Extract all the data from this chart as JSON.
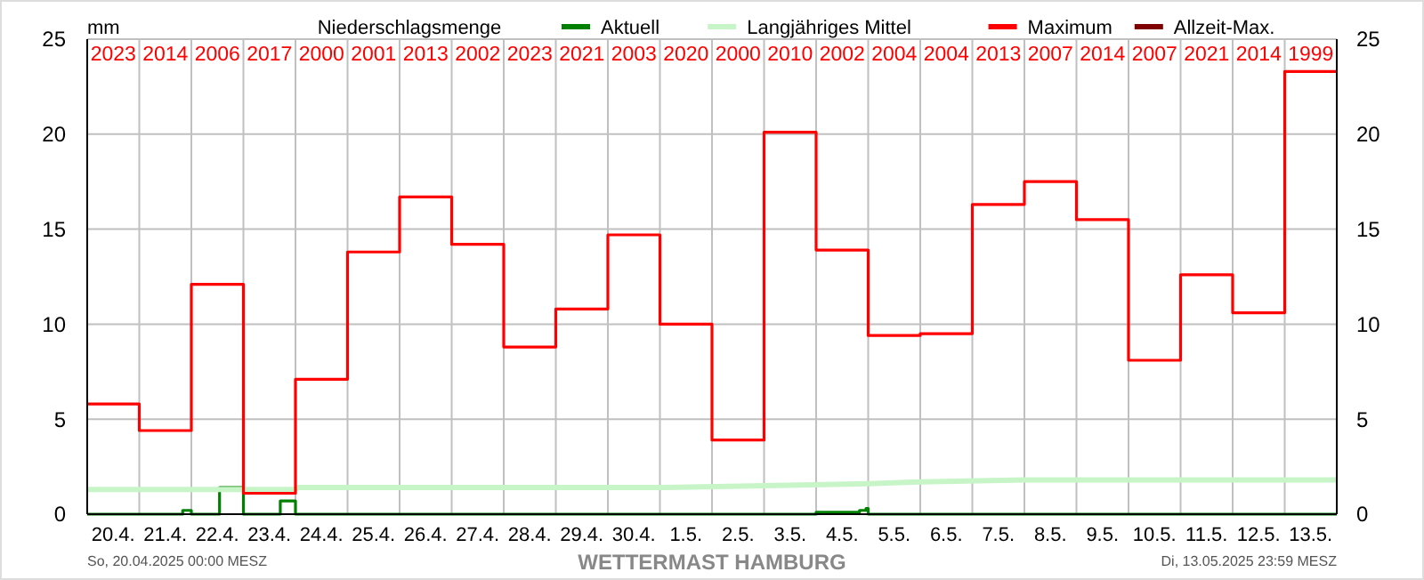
{
  "chart_data": {
    "type": "step",
    "title": "Niederschlagsmenge",
    "ylabel": "mm",
    "xlim": [
      "2025-04-20T00:00",
      "2025-05-14T00:00"
    ],
    "xticks": [
      {
        "value": "2025-04-20T00:00",
        "label": null
      },
      {
        "value": "2025-04-20T12:00",
        "label": "20.4."
      },
      {
        "value": "2025-04-21T00:00",
        "label": null
      },
      {
        "value": "2025-04-21T12:00",
        "label": "21.4."
      },
      {
        "value": "2025-04-22T00:00",
        "label": null
      },
      {
        "value": "2025-04-22T12:00",
        "label": "22.4."
      },
      {
        "value": "2025-04-23T00:00",
        "label": null
      },
      {
        "value": "2025-04-23T12:00",
        "label": "23.4."
      },
      {
        "value": "2025-04-24T00:00",
        "label": null
      },
      {
        "value": "2025-04-24T12:00",
        "label": "24.4."
      },
      {
        "value": "2025-04-25T00:00",
        "label": null
      },
      {
        "value": "2025-04-25T12:00",
        "label": "25.4."
      },
      {
        "value": "2025-04-26T00:00",
        "label": null
      },
      {
        "value": "2025-04-26T12:00",
        "label": "26.4."
      },
      {
        "value": "2025-04-27T00:00",
        "label": null
      },
      {
        "value": "2025-04-27T12:00",
        "label": "27.4."
      },
      {
        "value": "2025-04-28T00:00",
        "label": null
      },
      {
        "value": "2025-04-28T12:00",
        "label": "28.4."
      },
      {
        "value": "2025-04-29T00:00",
        "label": null
      },
      {
        "value": "2025-04-29T12:00",
        "label": "29.4."
      },
      {
        "value": "2025-04-30T00:00",
        "label": null
      },
      {
        "value": "2025-04-30T12:00",
        "label": "30.4."
      },
      {
        "value": "2025-05-01T00:00",
        "label": null
      },
      {
        "value": "2025-05-01T12:00",
        "label": "1.5."
      },
      {
        "value": "2025-05-02T00:00",
        "label": null
      },
      {
        "value": "2025-05-02T12:00",
        "label": "2.5."
      },
      {
        "value": "2025-05-03T00:00",
        "label": null
      },
      {
        "value": "2025-05-03T12:00",
        "label": "3.5."
      },
      {
        "value": "2025-05-04T00:00",
        "label": null
      },
      {
        "value": "2025-05-04T12:00",
        "label": "4.5."
      },
      {
        "value": "2025-05-05T00:00",
        "label": null
      },
      {
        "value": "2025-05-05T12:00",
        "label": "5.5."
      },
      {
        "value": "2025-05-06T00:00",
        "label": null
      },
      {
        "value": "2025-05-06T12:00",
        "label": "6.5."
      },
      {
        "value": "2025-05-07T00:00",
        "label": null
      },
      {
        "value": "2025-05-07T12:00",
        "label": "7.5."
      },
      {
        "value": "2025-05-08T00:00",
        "label": null
      },
      {
        "value": "2025-05-08T12:00",
        "label": "8.5."
      },
      {
        "value": "2025-05-09T00:00",
        "label": null
      },
      {
        "value": "2025-05-09T12:00",
        "label": "9.5."
      },
      {
        "value": "2025-05-10T00:00",
        "label": null
      },
      {
        "value": "2025-05-10T12:00",
        "label": "10.5."
      },
      {
        "value": "2025-05-11T00:00",
        "label": null
      },
      {
        "value": "2025-05-11T12:00",
        "label": "11.5."
      },
      {
        "value": "2025-05-12T00:00",
        "label": null
      },
      {
        "value": "2025-05-12T12:00",
        "label": "12.5."
      },
      {
        "value": "2025-05-13T00:00",
        "label": null
      },
      {
        "value": "2025-05-13T12:00",
        "label": "13.5."
      },
      {
        "value": "2025-05-14T00:00",
        "label": null
      }
    ],
    "ylim": [
      0,
      25
    ],
    "yticks": [
      0,
      5,
      10,
      15,
      20,
      25
    ],
    "y2lim": [
      0,
      25
    ],
    "y2ticks": [
      0,
      5,
      10,
      15,
      20,
      25
    ],
    "grid": true,
    "legend": "top right",
    "line_style": "solid",
    "series": [
      {
        "name": "Aktuell",
        "color": "#008000",
        "type": "step",
        "x": [
          "2025-04-20T00:00",
          "2025-04-21T20:00",
          "2025-04-22T00:00",
          "2025-04-22T13:00",
          "2025-04-23T00:00",
          "2025-04-23T17:00",
          "2025-04-24T00:00",
          "2025-05-04T00:00",
          "2025-05-04T20:00",
          "2025-05-04T23:00",
          "2025-05-05T00:00",
          "2025-05-14T00:00"
        ],
        "values": [
          0,
          0.2,
          0,
          1.4,
          0,
          0.7,
          0,
          0.1,
          0.2,
          0.3,
          0,
          0
        ]
      },
      {
        "name": "Langjähriges Mittel",
        "color": "#c8f5c8",
        "type": "line",
        "x": [
          "2025-04-20T00:00",
          "2025-04-24T00:00",
          "2025-04-24T01:00",
          "2025-05-01T00:00",
          "2025-05-03T00:00",
          "2025-05-05T00:00",
          "2025-05-06T00:00",
          "2025-05-08T00:00",
          "2025-05-11T00:00",
          "2025-05-14T00:00"
        ],
        "values": [
          1.3,
          1.3,
          1.4,
          1.4,
          1.5,
          1.6,
          1.7,
          1.8,
          1.8,
          1.8
        ]
      },
      {
        "name": "Maximum",
        "color": "#ff0000",
        "type": "step",
        "x": [
          "2025-04-20",
          "2025-04-21",
          "2025-04-22",
          "2025-04-23",
          "2025-04-24",
          "2025-04-25",
          "2025-04-26",
          "2025-04-27",
          "2025-04-28",
          "2025-04-29",
          "2025-04-30",
          "2025-05-01",
          "2025-05-02",
          "2025-05-03",
          "2025-05-04",
          "2025-05-05",
          "2025-05-06",
          "2025-05-07",
          "2025-05-08",
          "2025-05-09",
          "2025-05-10",
          "2025-05-11",
          "2025-05-12",
          "2025-05-13",
          "2025-05-14"
        ],
        "values": [
          5.8,
          4.4,
          12.1,
          1.1,
          7.1,
          13.8,
          16.7,
          14.2,
          8.8,
          10.8,
          14.7,
          10.0,
          3.9,
          20.1,
          13.9,
          9.4,
          9.5,
          16.3,
          17.5,
          15.5,
          8.1,
          12.6,
          10.6,
          23.3,
          23.3
        ]
      },
      {
        "name": "Allzeit-Max.",
        "color": "#7f0000",
        "type": "step"
      }
    ],
    "annotations": [
      "2023",
      "2014",
      "2006",
      "2017",
      "2000",
      "2001",
      "2013",
      "2002",
      "2023",
      "2021",
      "2003",
      "2020",
      "2000",
      "2010",
      "2002",
      "2004",
      "2004",
      "2013",
      "2007",
      "2014",
      "2007",
      "2021",
      "2014",
      "1999",
      "So, 20.04.2025 00:00 MESZ",
      "WETTERMAST HAMBURG",
      "Di, 13.05.2025 23:59 MESZ"
    ]
  }
}
